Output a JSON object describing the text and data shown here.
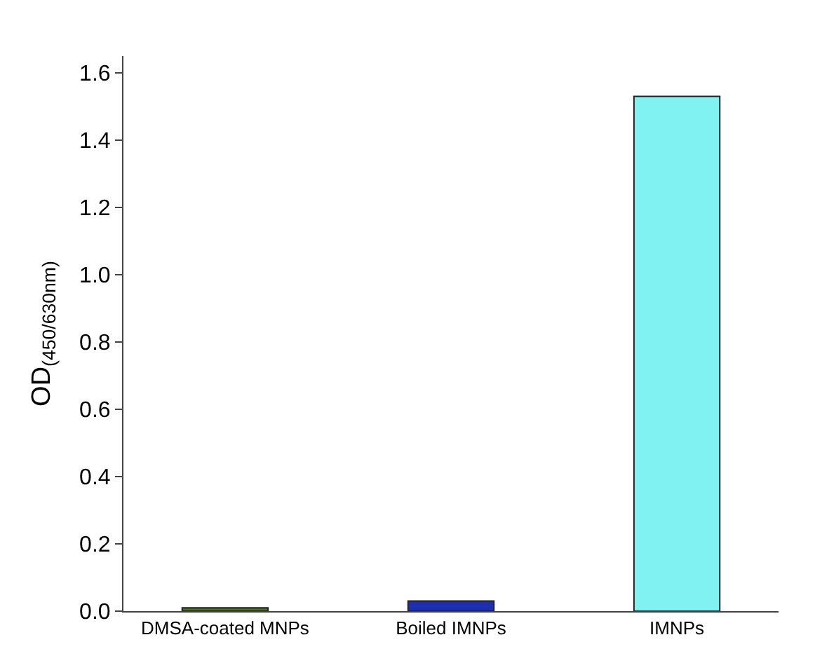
{
  "chart_data": {
    "type": "bar",
    "ylabel": "OD$_{(450/630nm)}$",
    "categories": [
      "DMSA-coated MNPs",
      "Boiled IMNPs",
      "IMNPs"
    ],
    "values": [
      0.01,
      0.03,
      1.53
    ],
    "colors": [
      "#4f6b2a",
      "#1c2fb0",
      "#80f2f2"
    ],
    "ylim": [
      0,
      1.65
    ],
    "yticks": [
      {
        "value": 0,
        "label": "0.0"
      },
      0.2,
      0.4,
      0.6,
      0.8,
      {
        "value": 1,
        "label": "1.0"
      },
      1.2,
      1.4,
      1.6
    ]
  }
}
